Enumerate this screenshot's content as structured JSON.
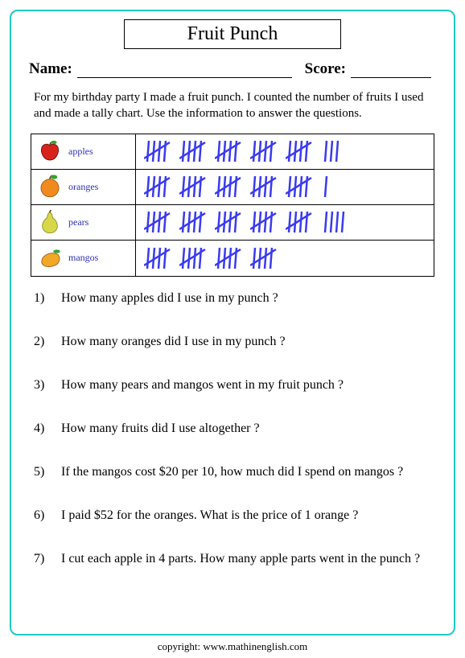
{
  "title": "Fruit Punch",
  "name_label": "Name:",
  "score_label": "Score:",
  "instructions": "For my birthday party I made a fruit punch. I counted the number of fruits I used and made a tally chart. Use the information to answer the questions.",
  "tally": {
    "stroke_color": "#3a3af0",
    "rows": [
      {
        "fruit": "apples",
        "count": 28,
        "groups_of_5": 5,
        "extra": 3
      },
      {
        "fruit": "oranges",
        "count": 26,
        "groups_of_5": 5,
        "extra": 1
      },
      {
        "fruit": "pears",
        "count": 29,
        "groups_of_5": 5,
        "extra": 4
      },
      {
        "fruit": "mangos",
        "count": 20,
        "groups_of_5": 4,
        "extra": 0
      }
    ]
  },
  "fruit_icons": {
    "apples": {
      "fill": "#d8231b",
      "leaf": "#2fa52f",
      "type": "apple"
    },
    "oranges": {
      "fill": "#f08a1f",
      "leaf": "#2fa52f",
      "type": "orange"
    },
    "pears": {
      "fill": "#d6d84a",
      "leaf": "#2fa52f",
      "type": "pear"
    },
    "mangos": {
      "fill": "#f0a826",
      "leaf": "#2fa52f",
      "type": "mango"
    }
  },
  "questions": [
    {
      "n": "1)",
      "text": "How many apples did I use in my punch ?"
    },
    {
      "n": "2)",
      "text": "How many oranges did I use in my punch ?"
    },
    {
      "n": "3)",
      "text": "How many pears and mangos went in my fruit punch ?"
    },
    {
      "n": "4)",
      "text": "How many fruits did I use altogether ?"
    },
    {
      "n": "5)",
      "text": "If the mangos cost $20 per 10, how much did I spend on mangos ?"
    },
    {
      "n": "6)",
      "text": "I paid $52 for the oranges. What is the price of 1 orange ?"
    },
    {
      "n": "7)",
      "text": "I cut each apple in 4 parts. How many apple parts went in the punch ?"
    }
  ],
  "copyright": "copyright:    www.mathinenglish.com"
}
